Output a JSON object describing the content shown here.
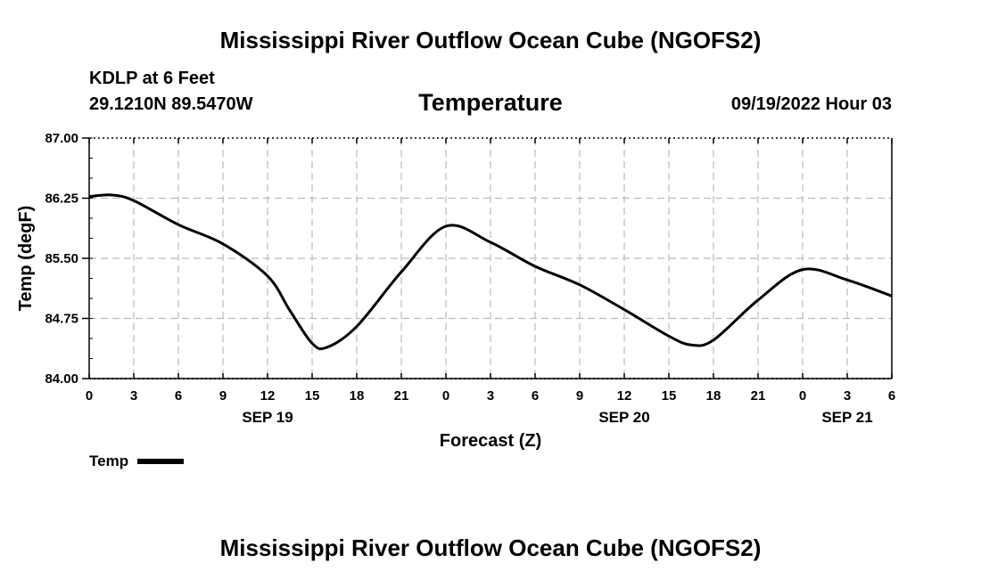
{
  "header": {
    "title": "Mississippi River Outflow Ocean Cube (NGOFS2)",
    "station": "KDLP at 6 Feet",
    "coords": "29.1210N  89.5470W",
    "variable": "Temperature",
    "timestamp": "09/19/2022 Hour 03"
  },
  "footer": {
    "title": "Mississippi River Outflow Ocean Cube (NGOFS2)"
  },
  "legend": {
    "label": "Temp",
    "color": "#000000"
  },
  "chart_data": {
    "type": "line",
    "title": "Temperature",
    "xlabel": "Forecast (Z)",
    "ylabel": "Temp (degF)",
    "ylim": [
      84.0,
      87.0
    ],
    "yticks": [
      "84.00",
      "84.75",
      "85.50",
      "86.25",
      "87.00"
    ],
    "xlim": [
      0,
      54
    ],
    "xticks": [
      "0",
      "3",
      "6",
      "9",
      "12",
      "15",
      "18",
      "21",
      "0",
      "3",
      "6",
      "9",
      "12",
      "15",
      "18",
      "21",
      "0",
      "3",
      "6"
    ],
    "day_labels": [
      {
        "label": "SEP 19",
        "x": 12
      },
      {
        "label": "SEP 20",
        "x": 36
      },
      {
        "label": "SEP 21",
        "x": 51
      }
    ],
    "grid": true,
    "series": [
      {
        "name": "Temp",
        "color": "#000000",
        "x": [
          0,
          1.5,
          3,
          6,
          9,
          12,
          13.5,
          15,
          16,
          18,
          21,
          24,
          27,
          30,
          33,
          36,
          39,
          40.5,
          42,
          45,
          48,
          51,
          54
        ],
        "values": [
          86.27,
          86.29,
          86.22,
          85.92,
          85.68,
          85.28,
          84.85,
          84.44,
          84.39,
          84.65,
          85.33,
          85.9,
          85.7,
          85.4,
          85.17,
          84.86,
          84.53,
          84.42,
          84.48,
          84.98,
          85.36,
          85.23,
          85.03
        ]
      }
    ]
  }
}
